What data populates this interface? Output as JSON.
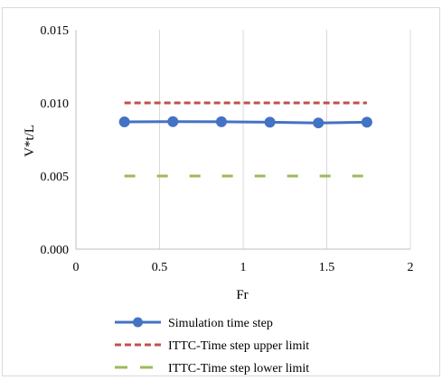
{
  "chart_data": {
    "type": "line",
    "title": "",
    "xlabel": "Fr",
    "ylabel": "V*t/L",
    "xlim": [
      0,
      2
    ],
    "ylim": [
      0,
      0.015
    ],
    "xticks": [
      0,
      0.5,
      1,
      1.5,
      2
    ],
    "xtick_labels": [
      "0",
      "0.5",
      "1",
      "1.5",
      "2"
    ],
    "yticks": [
      0,
      0.005,
      0.01,
      0.015
    ],
    "ytick_labels": [
      "0.000",
      "0.005",
      "0.010",
      "0.015"
    ],
    "grid": "vertical",
    "legend_position": "bottom",
    "series": [
      {
        "name": "Simulation time step",
        "style": "solid-with-markers",
        "color": "#4472C4",
        "x": [
          0.29,
          0.58,
          0.87,
          1.16,
          1.45,
          1.74
        ],
        "values": [
          0.0087,
          0.00872,
          0.00871,
          0.00868,
          0.00863,
          0.00868
        ]
      },
      {
        "name": "ITTC-Time step upper limit",
        "style": "short-dash",
        "color": "#C0504D",
        "x": [
          0.29,
          1.74
        ],
        "values": [
          0.01,
          0.01
        ]
      },
      {
        "name": "ITTC-Time step lower limit",
        "style": "long-dash",
        "color": "#9BBB59",
        "x": [
          0.29,
          1.74
        ],
        "values": [
          0.005,
          0.005
        ]
      }
    ]
  }
}
